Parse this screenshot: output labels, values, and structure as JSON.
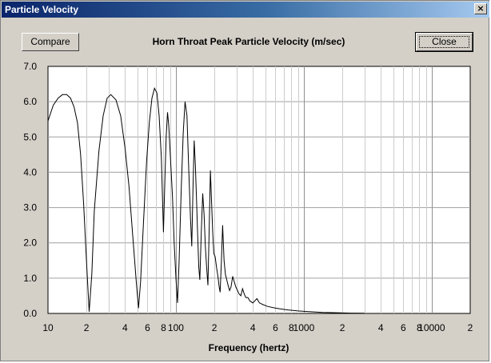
{
  "window": {
    "title": "Particle Velocity",
    "close_glyph": "×"
  },
  "buttons": {
    "compare": "Compare",
    "close": "Close"
  },
  "chart_data": {
    "type": "line",
    "title": "Horn Throat Peak Particle Velocity (m/sec)",
    "xlabel": "Frequency (hertz)",
    "ylabel": "",
    "xscale": "log",
    "xlim": [
      10,
      20000
    ],
    "ylim": [
      0,
      7
    ],
    "grid": true,
    "y_ticks": [
      "0.0",
      "1.0",
      "2.0",
      "3.0",
      "4.0",
      "5.0",
      "6.0",
      "7.0"
    ],
    "x_ticks": [
      {
        "v": 10,
        "label": "10"
      },
      {
        "v": 20,
        "label": "2"
      },
      {
        "v": 40,
        "label": "4"
      },
      {
        "v": 60,
        "label": "6"
      },
      {
        "v": 80,
        "label": "8"
      },
      {
        "v": 100,
        "label": "100"
      },
      {
        "v": 200,
        "label": "2"
      },
      {
        "v": 400,
        "label": "4"
      },
      {
        "v": 600,
        "label": "6"
      },
      {
        "v": 800,
        "label": "8"
      },
      {
        "v": 1000,
        "label": "1000"
      },
      {
        "v": 2000,
        "label": "2"
      },
      {
        "v": 4000,
        "label": "4"
      },
      {
        "v": 6000,
        "label": "6"
      },
      {
        "v": 8000,
        "label": "8"
      },
      {
        "v": 10000,
        "label": "10000"
      },
      {
        "v": 20000,
        "label": "2"
      }
    ],
    "series": [
      {
        "color": "#000000",
        "points": [
          [
            10,
            5.45
          ],
          [
            11,
            5.9
          ],
          [
            12,
            6.1
          ],
          [
            13,
            6.2
          ],
          [
            14,
            6.2
          ],
          [
            15,
            6.1
          ],
          [
            16,
            5.85
          ],
          [
            17,
            5.4
          ],
          [
            18,
            4.5
          ],
          [
            19,
            3.1
          ],
          [
            20,
            1.5
          ],
          [
            21,
            0.05
          ],
          [
            22,
            1.1
          ],
          [
            23,
            2.9
          ],
          [
            25,
            4.6
          ],
          [
            27,
            5.6
          ],
          [
            29,
            6.1
          ],
          [
            31,
            6.2
          ],
          [
            34,
            6.05
          ],
          [
            37,
            5.6
          ],
          [
            40,
            4.7
          ],
          [
            43,
            3.6
          ],
          [
            46,
            2.2
          ],
          [
            49,
            0.9
          ],
          [
            51,
            0.15
          ],
          [
            53,
            0.9
          ],
          [
            56,
            2.7
          ],
          [
            59,
            4.3
          ],
          [
            62,
            5.4
          ],
          [
            65,
            6.1
          ],
          [
            68,
            6.38
          ],
          [
            71,
            6.25
          ],
          [
            74,
            5.6
          ],
          [
            77,
            4.4
          ],
          [
            80,
            2.3
          ],
          [
            82,
            3.8
          ],
          [
            84,
            5.0
          ],
          [
            86,
            5.7
          ],
          [
            88,
            5.3
          ],
          [
            91,
            4.3
          ],
          [
            94,
            3.3
          ],
          [
            97,
            2.0
          ],
          [
            100,
            1.0
          ],
          [
            103,
            0.3
          ],
          [
            106,
            1.5
          ],
          [
            110,
            3.5
          ],
          [
            114,
            5.1
          ],
          [
            118,
            6.0
          ],
          [
            122,
            5.6
          ],
          [
            126,
            4.1
          ],
          [
            130,
            2.7
          ],
          [
            133,
            1.9
          ],
          [
            136,
            3.5
          ],
          [
            139,
            4.9
          ],
          [
            142,
            4.2
          ],
          [
            145,
            3.2
          ],
          [
            148,
            2.2
          ],
          [
            151,
            1.3
          ],
          [
            154,
            0.95
          ],
          [
            158,
            2.3
          ],
          [
            162,
            3.4
          ],
          [
            166,
            2.8
          ],
          [
            170,
            1.9
          ],
          [
            174,
            1.3
          ],
          [
            178,
            0.8
          ],
          [
            182,
            2.3
          ],
          [
            186,
            4.05
          ],
          [
            190,
            3.2
          ],
          [
            194,
            2.3
          ],
          [
            198,
            1.7
          ],
          [
            203,
            1.6
          ],
          [
            208,
            1.3
          ],
          [
            213,
            1.05
          ],
          [
            218,
            0.75
          ],
          [
            222,
            0.6
          ],
          [
            227,
            1.5
          ],
          [
            232,
            2.5
          ],
          [
            238,
            1.5
          ],
          [
            244,
            1.1
          ],
          [
            250,
            0.95
          ],
          [
            256,
            0.8
          ],
          [
            263,
            0.65
          ],
          [
            270,
            0.75
          ],
          [
            278,
            1.05
          ],
          [
            286,
            0.9
          ],
          [
            294,
            0.75
          ],
          [
            303,
            0.65
          ],
          [
            312,
            0.55
          ],
          [
            322,
            0.5
          ],
          [
            332,
            0.7
          ],
          [
            342,
            0.55
          ],
          [
            352,
            0.45
          ],
          [
            365,
            0.45
          ],
          [
            380,
            0.35
          ],
          [
            400,
            0.3
          ],
          [
            430,
            0.42
          ],
          [
            450,
            0.3
          ],
          [
            480,
            0.25
          ],
          [
            520,
            0.2
          ],
          [
            580,
            0.16
          ],
          [
            650,
            0.13
          ],
          [
            750,
            0.1
          ],
          [
            900,
            0.07
          ],
          [
            1100,
            0.05
          ],
          [
            1400,
            0.03
          ],
          [
            1800,
            0.02
          ],
          [
            2300,
            0.01
          ],
          [
            3000,
            0.005
          ]
        ]
      }
    ]
  }
}
